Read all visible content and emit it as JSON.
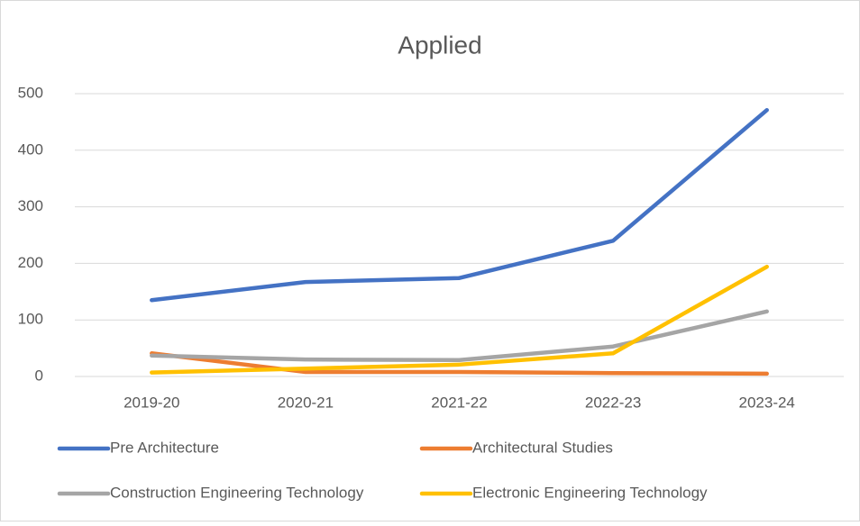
{
  "chart_data": {
    "type": "line",
    "title": "Applied",
    "categories": [
      "2019-20",
      "2020-21",
      "2021-22",
      "2022-23",
      "2023-24"
    ],
    "series": [
      {
        "name": "Pre Architecture",
        "color": "#4472c4",
        "values": [
          135,
          167,
          174,
          240,
          471
        ]
      },
      {
        "name": "Architectural Studies",
        "color": "#ed7d31",
        "values": [
          41,
          8,
          8,
          6,
          5
        ]
      },
      {
        "name": "Construction Engineering Technology",
        "color": "#a5a5a5",
        "values": [
          37,
          30,
          29,
          53,
          115
        ]
      },
      {
        "name": "Electronic Engineering Technology",
        "color": "#ffc000",
        "values": [
          7,
          14,
          21,
          41,
          194
        ]
      }
    ],
    "ylim": [
      0,
      500
    ],
    "yticks": [
      0,
      100,
      200,
      300,
      400,
      500
    ],
    "grid": true,
    "legend": "bottom"
  }
}
